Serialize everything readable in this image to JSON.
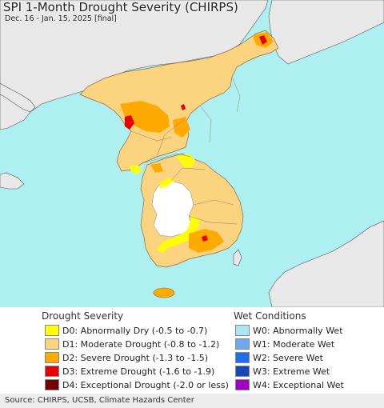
{
  "title": "SPI 1-Month Drought Severity (CHIRPS)",
  "subtitle": "Dec. 16 - Jan. 15, 2025 [final]",
  "colors": {
    "ocean": "#aef0f2",
    "outside_land": "#e8e8e8",
    "no_drought": "#ffffff",
    "d0": "#ffff00",
    "d1": "#fcd37f",
    "d2": "#ffaa00",
    "d3": "#e60000",
    "d4": "#730000"
  },
  "legend": {
    "drought": {
      "heading": "Drought Severity",
      "items": [
        {
          "label": "D0: Abnormally Dry (-0.5 to -0.7)",
          "color": "#ffff00"
        },
        {
          "label": "D1: Moderate Drought (-0.8 to -1.2)",
          "color": "#fcd37f"
        },
        {
          "label": "D2: Severe Drought (-1.3 to -1.5)",
          "color": "#ffaa00"
        },
        {
          "label": "D3: Extreme Drought (-1.6 to -1.9)",
          "color": "#e60000"
        },
        {
          "label": "D4: Exceptional Drought (-2.0 or less)",
          "color": "#730000"
        }
      ]
    },
    "wet": {
      "heading": "Wet Conditions",
      "items": [
        {
          "label": "W0: Abnormally Wet",
          "color": "#aae6f5"
        },
        {
          "label": "W1: Moderate Wet",
          "color": "#6ea8f0"
        },
        {
          "label": "W2: Severe Wet",
          "color": "#1e6ef0"
        },
        {
          "label": "W3: Extreme Wet",
          "color": "#1846b4"
        },
        {
          "label": "W4: Exceptional Wet",
          "color": "#a000c8"
        }
      ]
    }
  },
  "footer": "Source: CHIRPS, UCSB, Climate Hazards Center"
}
